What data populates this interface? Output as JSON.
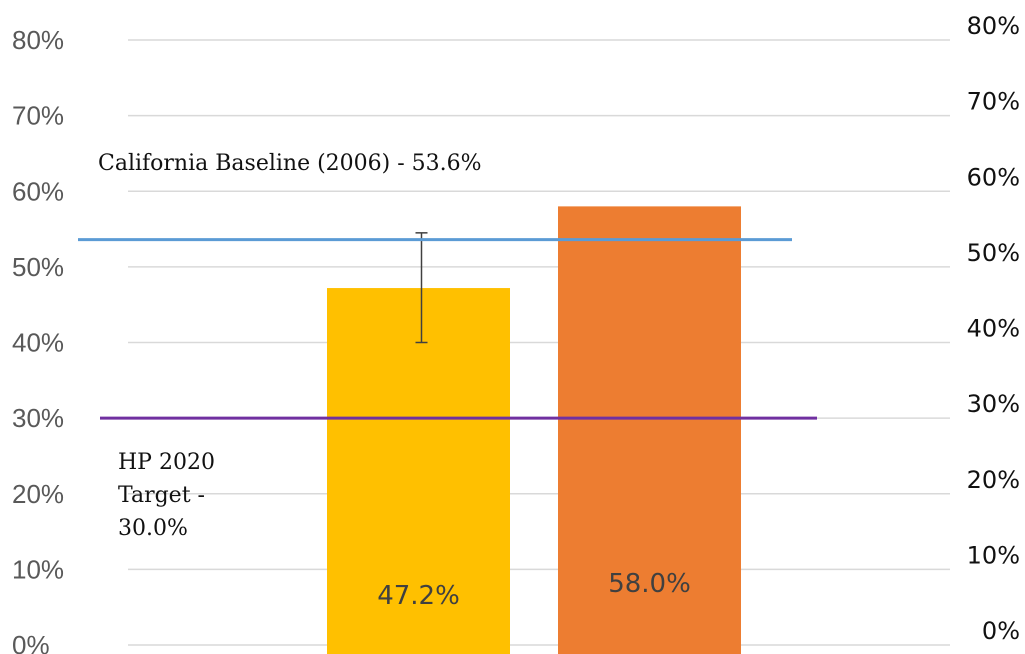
{
  "chart_data": {
    "type": "bar",
    "categories": [
      "",
      ""
    ],
    "values": [
      47.2,
      58.0
    ],
    "data_labels": [
      "47.2%",
      "58.0%"
    ],
    "colors": [
      "#FFC000",
      "#ED7D31"
    ],
    "error_bar": {
      "index": 0,
      "low": 40.0,
      "high": 54.5
    },
    "ylim": [
      0,
      80
    ],
    "y_ticks": [
      0,
      10,
      20,
      30,
      40,
      50,
      60,
      70,
      80
    ],
    "y_tick_labels": [
      "0%",
      "10%",
      "20%",
      "30%",
      "40%",
      "50%",
      "60%",
      "70%",
      "80%"
    ],
    "reference_lines": [
      {
        "value": 53.6,
        "color": "#5B9BD5",
        "label_lines": [
          "California Baseline (2006) - 53.6%"
        ]
      },
      {
        "value": 30.0,
        "color": "#7030A0",
        "label_lines": [
          "HP 2020",
          "Target -",
          "30.0%"
        ]
      }
    ],
    "grid": true,
    "title": "",
    "xlabel": "",
    "ylabel": ""
  }
}
